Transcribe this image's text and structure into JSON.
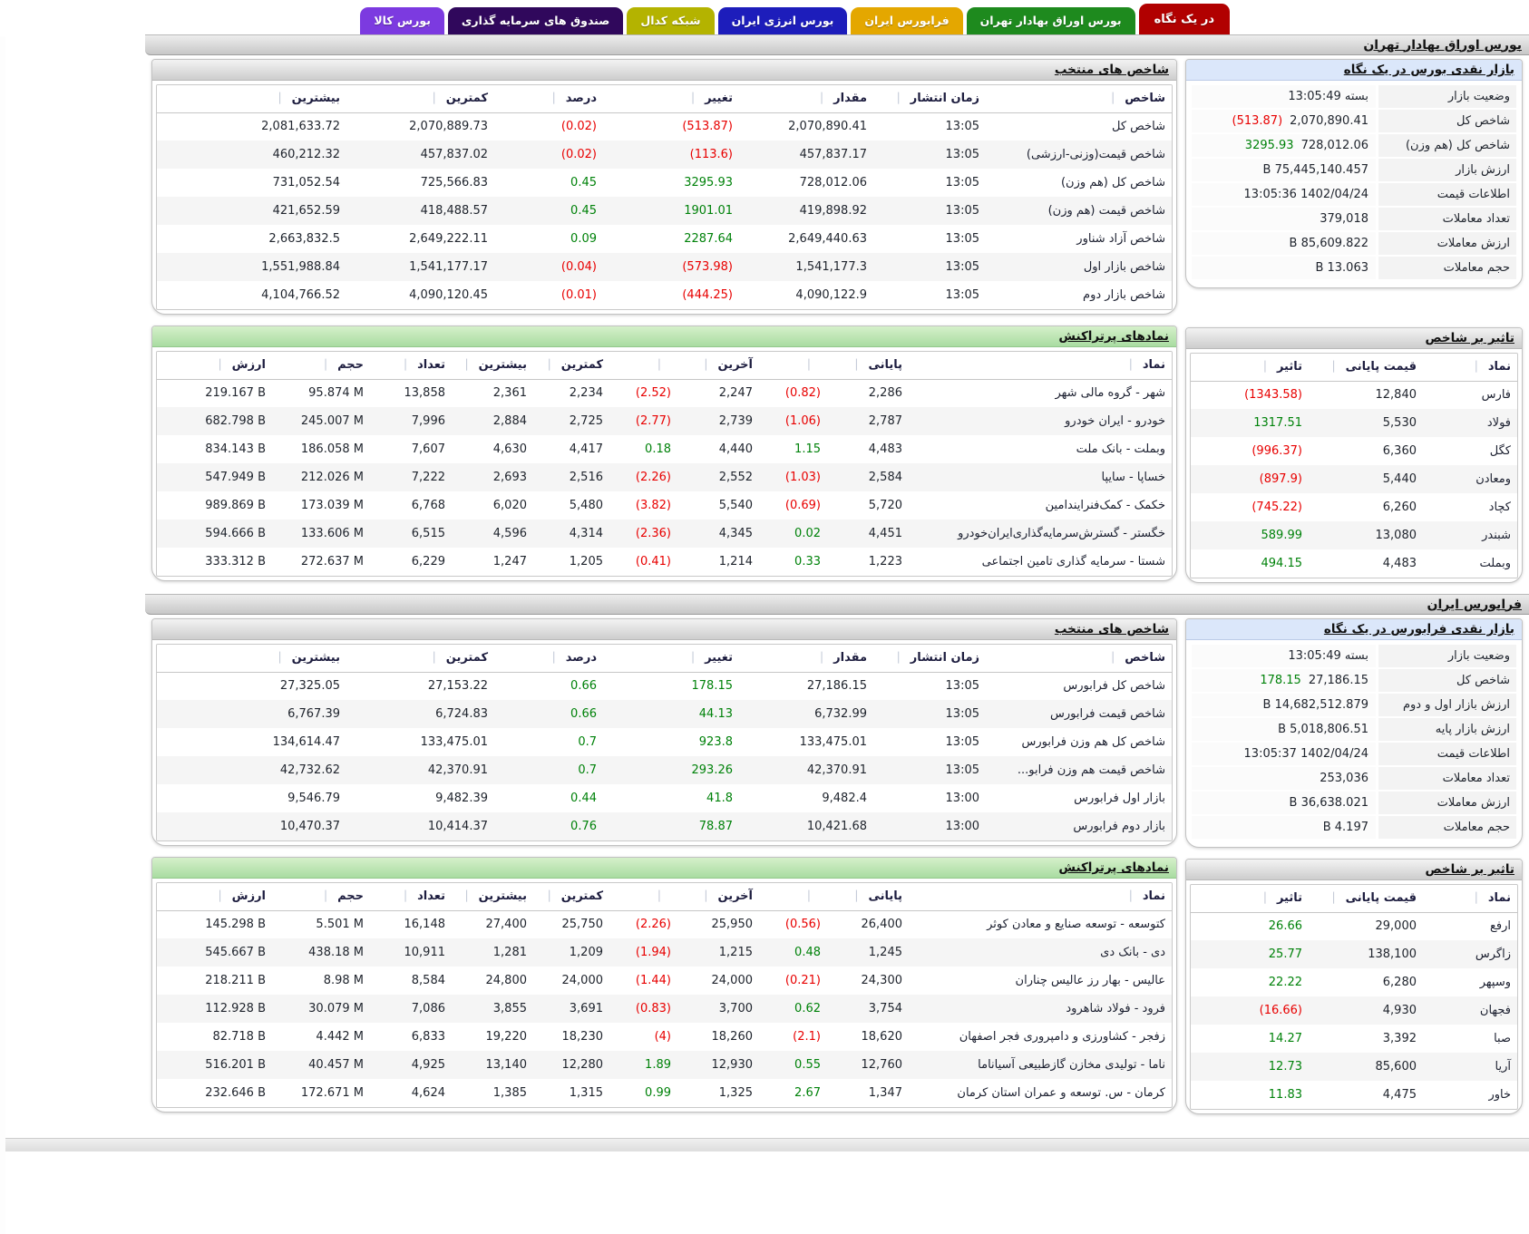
{
  "icons": {
    "sort_tick": "▏"
  },
  "colors": {
    "negative": "#e80000",
    "positive": "#00820a"
  },
  "tabs": [
    {
      "label": "در یک نگاه",
      "color": "#b10000",
      "active": true
    },
    {
      "label": "بورس اوراق بهادار تهران",
      "color": "#1e8a1e",
      "active": false
    },
    {
      "label": "فرابورس ایران",
      "color": "#e4a700",
      "active": false
    },
    {
      "label": "بورس انرژی ایران",
      "color": "#1d1dbb",
      "active": false
    },
    {
      "label": "شبکه کدال",
      "color": "#b4b300",
      "active": false
    },
    {
      "label": "صندوق های سرمایه گذاری",
      "color": "#30085c",
      "active": false
    },
    {
      "label": "بورس کالا",
      "color": "#7c3ae0",
      "active": false
    }
  ],
  "sections": [
    {
      "title": "بورس اوراق بهادار تهران",
      "overview": {
        "title": "بازار نقدی بورس در یک نگاه",
        "rows": [
          {
            "label": "وضعیت بازار",
            "value": "بسته 13:05:49"
          },
          {
            "label": "شاخص کل",
            "value": "2,070,890.41",
            "change": "(513.87)",
            "trend": "neg"
          },
          {
            "label": "شاخص کل (هم وزن)",
            "value": "728,012.06",
            "change": "3295.93",
            "trend": "pos"
          },
          {
            "label": "ارزش بازار",
            "value": "75,445,140.457 B"
          },
          {
            "label": "اطلاعات قیمت",
            "value": "1402/04/24 13:05:36"
          },
          {
            "label": "تعداد معاملات",
            "value": "379,018"
          },
          {
            "label": "ارزش معاملات",
            "value": "85,609.822 B"
          },
          {
            "label": "حجم معاملات",
            "value": "13.063 B"
          }
        ]
      },
      "indices": {
        "title": "شاخص های منتخب",
        "headers": [
          "شاخص",
          "زمان انتشار",
          "مقدار",
          "تغییر",
          "درصد",
          "کمترین",
          "بیشترین"
        ],
        "rows": [
          {
            "name": "شاخص کل",
            "time": "13:05",
            "value": "2,070,890.41",
            "change": "(513.87)",
            "percent": "(0.02)",
            "trend": "neg",
            "low": "2,070,889.73",
            "high": "2,081,633.72"
          },
          {
            "name": "شاخص قیمت(وزنی-ارزشی)",
            "time": "13:05",
            "value": "457,837.17",
            "change": "(113.6)",
            "percent": "(0.02)",
            "trend": "neg",
            "low": "457,837.02",
            "high": "460,212.32"
          },
          {
            "name": "شاخص کل (هم وزن)",
            "time": "13:05",
            "value": "728,012.06",
            "change": "3295.93",
            "percent": "0.45",
            "trend": "pos",
            "low": "725,566.83",
            "high": "731,052.54"
          },
          {
            "name": "شاخص قیمت (هم وزن)",
            "time": "13:05",
            "value": "419,898.92",
            "change": "1901.01",
            "percent": "0.45",
            "trend": "pos",
            "low": "418,488.57",
            "high": "421,652.59"
          },
          {
            "name": "شاخص آزاد شناور",
            "time": "13:05",
            "value": "2,649,440.63",
            "change": "2287.64",
            "percent": "0.09",
            "trend": "pos",
            "low": "2,649,222.11",
            "high": "2,663,832.5"
          },
          {
            "name": "شاخص بازار اول",
            "time": "13:05",
            "value": "1,541,177.3",
            "change": "(573.98)",
            "percent": "(0.04)",
            "trend": "neg",
            "low": "1,541,177.17",
            "high": "1,551,988.84"
          },
          {
            "name": "شاخص بازار دوم",
            "time": "13:05",
            "value": "4,090,122.9",
            "change": "(444.25)",
            "percent": "(0.01)",
            "trend": "neg",
            "low": "4,090,120.45",
            "high": "4,104,766.52"
          }
        ]
      },
      "impact": {
        "title": "تاثیر بر شاخص",
        "headers": [
          "نماد",
          "قیمت پایانی",
          "تاثیر"
        ],
        "rows": [
          {
            "symbol": "فارس",
            "close_price": "12,840",
            "impact": "(1343.58)",
            "trend": "neg"
          },
          {
            "symbol": "فولاد",
            "close_price": "5,530",
            "impact": "1317.51",
            "trend": "pos"
          },
          {
            "symbol": "کگل",
            "close_price": "6,360",
            "impact": "(996.37)",
            "trend": "neg"
          },
          {
            "symbol": "ومعادن",
            "close_price": "5,440",
            "impact": "(897.9)",
            "trend": "neg"
          },
          {
            "symbol": "کچاد",
            "close_price": "6,260",
            "impact": "(745.22)",
            "trend": "neg"
          },
          {
            "symbol": "شبندر",
            "close_price": "13,080",
            "impact": "589.99",
            "trend": "pos"
          },
          {
            "symbol": "وبملت",
            "close_price": "4,483",
            "impact": "494.15",
            "trend": "pos"
          }
        ]
      },
      "most_active": {
        "title": "نمادهای پرتراکنش",
        "headers": [
          "نماد",
          "پایانی",
          "",
          "آخرین",
          "",
          "کمترین",
          "بیشترین",
          "تعداد",
          "حجم",
          "ارزش"
        ],
        "rows": [
          {
            "name": "شهر - گروه مالی شهر",
            "close": "2,286",
            "close_pct": "(0.82)",
            "close_trend": "neg",
            "last": "2,247",
            "last_pct": "(2.52)",
            "last_trend": "neg",
            "low": "2,234",
            "high": "2,361",
            "trades": "13,858",
            "volume": "95.874 M",
            "value": "219.167 B"
          },
          {
            "name": "خودرو - ایران خودرو",
            "close": "2,787",
            "close_pct": "(1.06)",
            "close_trend": "neg",
            "last": "2,739",
            "last_pct": "(2.77)",
            "last_trend": "neg",
            "low": "2,725",
            "high": "2,884",
            "trades": "7,996",
            "volume": "245.007 M",
            "value": "682.798 B"
          },
          {
            "name": "وبملت - بانک ملت",
            "close": "4,483",
            "close_pct": "1.15",
            "close_trend": "pos",
            "last": "4,440",
            "last_pct": "0.18",
            "last_trend": "pos",
            "low": "4,417",
            "high": "4,630",
            "trades": "7,607",
            "volume": "186.058 M",
            "value": "834.143 B"
          },
          {
            "name": "خساپا - سایپا",
            "close": "2,584",
            "close_pct": "(1.03)",
            "close_trend": "neg",
            "last": "2,552",
            "last_pct": "(2.26)",
            "last_trend": "neg",
            "low": "2,516",
            "high": "2,693",
            "trades": "7,222",
            "volume": "212.026 M",
            "value": "547.949 B"
          },
          {
            "name": "خکمک - کمک‌فنرایندامین",
            "close": "5,720",
            "close_pct": "(0.69)",
            "close_trend": "neg",
            "last": "5,540",
            "last_pct": "(3.82)",
            "last_trend": "neg",
            "low": "5,480",
            "high": "6,020",
            "trades": "6,768",
            "volume": "173.039 M",
            "value": "989.869 B"
          },
          {
            "name": "خگستر - گسترش‌سرمایه‌گذاری‌ایران‌خودرو",
            "close": "4,451",
            "close_pct": "0.02",
            "close_trend": "pos",
            "last": "4,345",
            "last_pct": "(2.36)",
            "last_trend": "neg",
            "low": "4,314",
            "high": "4,596",
            "trades": "6,515",
            "volume": "133.606 M",
            "value": "594.666 B"
          },
          {
            "name": "شستا - سرمایه گذاری تامین اجتماعی",
            "close": "1,223",
            "close_pct": "0.33",
            "close_trend": "pos",
            "last": "1,214",
            "last_pct": "(0.41)",
            "last_trend": "neg",
            "low": "1,205",
            "high": "1,247",
            "trades": "6,229",
            "volume": "272.637 M",
            "value": "333.312 B"
          }
        ]
      }
    },
    {
      "title": "فرابورس ایران",
      "overview": {
        "title": "بازار نقدی فرابورس در یک نگاه",
        "rows": [
          {
            "label": "وضعیت بازار",
            "value": "بسته 13:05:49"
          },
          {
            "label": "شاخص کل",
            "value": "27,186.15",
            "change": "178.15",
            "trend": "pos"
          },
          {
            "label": "ارزش بازار اول و دوم",
            "value": "14,682,512.879 B"
          },
          {
            "label": "ارزش بازار پایه",
            "value": "5,018,806.51 B"
          },
          {
            "label": "اطلاعات قیمت",
            "value": "1402/04/24 13:05:37"
          },
          {
            "label": "تعداد معاملات",
            "value": "253,036"
          },
          {
            "label": "ارزش معاملات",
            "value": "36,638.021 B"
          },
          {
            "label": "حجم معاملات",
            "value": "4.197 B"
          }
        ]
      },
      "indices": {
        "title": "شاخص های منتخب",
        "headers": [
          "شاخص",
          "زمان انتشار",
          "مقدار",
          "تغییر",
          "درصد",
          "کمترین",
          "بیشترین"
        ],
        "rows": [
          {
            "name": "شاخص کل فرابورس",
            "time": "13:05",
            "value": "27,186.15",
            "change": "178.15",
            "percent": "0.66",
            "trend": "pos",
            "low": "27,153.22",
            "high": "27,325.05"
          },
          {
            "name": "شاخص قیمت فرابورس",
            "time": "13:05",
            "value": "6,732.99",
            "change": "44.13",
            "percent": "0.66",
            "trend": "pos",
            "low": "6,724.83",
            "high": "6,767.39"
          },
          {
            "name": "شاخص کل هم وزن فرابورس",
            "time": "13:05",
            "value": "133,475.01",
            "change": "923.8",
            "percent": "0.7",
            "trend": "pos",
            "low": "133,475.01",
            "high": "134,614.47"
          },
          {
            "name": "شاخص قیمت هم وزن فرابو...",
            "time": "13:05",
            "value": "42,370.91",
            "change": "293.26",
            "percent": "0.7",
            "trend": "pos",
            "low": "42,370.91",
            "high": "42,732.62"
          },
          {
            "name": "بازار اول فرابورس",
            "time": "13:00",
            "value": "9,482.4",
            "change": "41.8",
            "percent": "0.44",
            "trend": "pos",
            "low": "9,482.39",
            "high": "9,546.79"
          },
          {
            "name": "بازار دوم فرابورس",
            "time": "13:00",
            "value": "10,421.68",
            "change": "78.87",
            "percent": "0.76",
            "trend": "pos",
            "low": "10,414.37",
            "high": "10,470.37"
          }
        ]
      },
      "impact": {
        "title": "تاثیر بر شاخص",
        "headers": [
          "نماد",
          "قیمت پایانی",
          "تاثیر"
        ],
        "rows": [
          {
            "symbol": "ارفع",
            "close_price": "29,000",
            "impact": "26.66",
            "trend": "pos"
          },
          {
            "symbol": "زاگرس",
            "close_price": "138,100",
            "impact": "25.77",
            "trend": "pos"
          },
          {
            "symbol": "وسپهر",
            "close_price": "6,280",
            "impact": "22.22",
            "trend": "pos"
          },
          {
            "symbol": "فجهان",
            "close_price": "4,930",
            "impact": "(16.66)",
            "trend": "neg"
          },
          {
            "symbol": "صبا",
            "close_price": "3,392",
            "impact": "14.27",
            "trend": "pos"
          },
          {
            "symbol": "آریا",
            "close_price": "85,600",
            "impact": "12.73",
            "trend": "pos"
          },
          {
            "symbol": "خاور",
            "close_price": "4,475",
            "impact": "11.83",
            "trend": "pos"
          }
        ]
      },
      "most_active": {
        "title": "نمادهای پرتراکنش",
        "headers": [
          "نماد",
          "پایانی",
          "",
          "آخرین",
          "",
          "کمترین",
          "بیشترین",
          "تعداد",
          "حجم",
          "ارزش"
        ],
        "rows": [
          {
            "name": "کتوسعه - توسعه صنایع و معادن کوثر",
            "close": "26,400",
            "close_pct": "(0.56)",
            "close_trend": "neg",
            "last": "25,950",
            "last_pct": "(2.26)",
            "last_trend": "neg",
            "low": "25,750",
            "high": "27,400",
            "trades": "16,148",
            "volume": "5.501 M",
            "value": "145.298 B"
          },
          {
            "name": "دی - بانک دی",
            "close": "1,245",
            "close_pct": "0.48",
            "close_trend": "pos",
            "last": "1,215",
            "last_pct": "(1.94)",
            "last_trend": "neg",
            "low": "1,209",
            "high": "1,281",
            "trades": "10,911",
            "volume": "438.18 M",
            "value": "545.667 B"
          },
          {
            "name": "عالیس - بهار رز عالیس چناران",
            "close": "24,300",
            "close_pct": "(0.21)",
            "close_trend": "neg",
            "last": "24,000",
            "last_pct": "(1.44)",
            "last_trend": "neg",
            "low": "24,000",
            "high": "24,800",
            "trades": "8,584",
            "volume": "8.98 M",
            "value": "218.211 B"
          },
          {
            "name": "فرود - فولاد شاهرود",
            "close": "3,754",
            "close_pct": "0.62",
            "close_trend": "pos",
            "last": "3,700",
            "last_pct": "(0.83)",
            "last_trend": "neg",
            "low": "3,691",
            "high": "3,855",
            "trades": "7,086",
            "volume": "30.079 M",
            "value": "112.928 B"
          },
          {
            "name": "زفجر - کشاورزی و دامپروری فجر اصفهان",
            "close": "18,620",
            "close_pct": "(2.1)",
            "close_trend": "neg",
            "last": "18,260",
            "last_pct": "(4)",
            "last_trend": "neg",
            "low": "18,230",
            "high": "19,220",
            "trades": "6,833",
            "volume": "4.442 M",
            "value": "82.718 B"
          },
          {
            "name": "ناما - تولیدی مخازن گازطبیعی آسیاناما",
            "close": "12,760",
            "close_pct": "0.55",
            "close_trend": "pos",
            "last": "12,930",
            "last_pct": "1.89",
            "last_trend": "pos",
            "low": "12,280",
            "high": "13,140",
            "trades": "4,925",
            "volume": "40.457 M",
            "value": "516.201 B"
          },
          {
            "name": "کرمان - س. توسعه و عمران استان کرمان",
            "close": "1,347",
            "close_pct": "2.67",
            "close_trend": "pos",
            "last": "1,325",
            "last_pct": "0.99",
            "last_trend": "pos",
            "low": "1,315",
            "high": "1,385",
            "trades": "4,624",
            "volume": "172.671 M",
            "value": "232.646 B"
          }
        ]
      }
    }
  ]
}
